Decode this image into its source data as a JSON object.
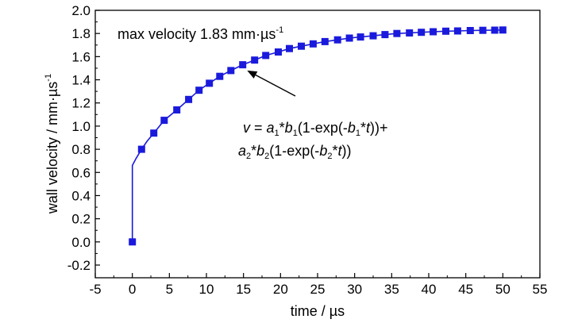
{
  "chart_data": {
    "type": "line",
    "title": "",
    "xlabel": "time / µs",
    "ylabel": {
      "main": "wall velocity / mm·µs",
      "sup": "-1"
    },
    "xlim": [
      -5,
      55
    ],
    "ylim": [
      -0.25,
      2.0
    ],
    "x_ticks": [
      -5,
      0,
      5,
      10,
      15,
      20,
      25,
      30,
      35,
      40,
      45,
      50,
      55
    ],
    "x_tick_labels": [
      "-5",
      "0",
      "5",
      "10",
      "15",
      "20",
      "25",
      "30",
      "35",
      "40",
      "45",
      "50",
      "55"
    ],
    "y_ticks": [
      -0.2,
      0.0,
      0.2,
      0.4,
      0.6,
      0.8,
      1.0,
      1.2,
      1.4,
      1.6,
      1.8,
      2.0
    ],
    "y_tick_labels": [
      "-0.2",
      "0.0",
      "0.2",
      "0.4",
      "0.6",
      "0.8",
      "1.0",
      "1.2",
      "1.4",
      "1.6",
      "1.8",
      "2.0"
    ],
    "grid": false,
    "series": [
      {
        "color": "#1a1adc",
        "marker": "square",
        "x": [
          0,
          1.25,
          2.9,
          4.3,
          6.0,
          7.6,
          9.0,
          10.4,
          11.8,
          13.3,
          14.9,
          16.5,
          18.0,
          19.7,
          21.2,
          22.8,
          24.4,
          26.0,
          27.7,
          29.3,
          30.8,
          32.5,
          34.1,
          35.7,
          37.4,
          39.0,
          40.6,
          42.3,
          43.9,
          45.6,
          47.3,
          48.9,
          50.0
        ],
        "y": [
          0.0,
          0.8,
          0.94,
          1.05,
          1.14,
          1.23,
          1.31,
          1.37,
          1.43,
          1.48,
          1.53,
          1.57,
          1.61,
          1.64,
          1.67,
          1.69,
          1.71,
          1.73,
          1.745,
          1.76,
          1.77,
          1.78,
          1.79,
          1.8,
          1.805,
          1.81,
          1.815,
          1.82,
          1.822,
          1.825,
          1.827,
          1.829,
          1.83
        ]
      }
    ],
    "fit_curve": {
      "x": [
        0,
        0,
        0.5,
        1.25,
        2.0,
        2.9,
        4.3,
        6.0,
        7.6,
        9.0,
        10.4,
        11.8,
        13.3,
        14.9,
        16.5,
        18.0,
        19.7,
        21.2,
        22.8,
        24.4,
        26.0,
        27.7,
        29.3,
        30.8,
        32.5,
        34.1,
        35.7,
        37.4,
        39.0,
        40.6,
        42.3,
        43.9,
        45.6,
        47.3,
        48.9,
        50.0
      ],
      "y": [
        0.0,
        0.66,
        0.72,
        0.8,
        0.87,
        0.94,
        1.05,
        1.14,
        1.23,
        1.31,
        1.37,
        1.43,
        1.48,
        1.53,
        1.57,
        1.61,
        1.64,
        1.67,
        1.69,
        1.71,
        1.73,
        1.745,
        1.76,
        1.77,
        1.78,
        1.79,
        1.8,
        1.805,
        1.81,
        1.815,
        1.82,
        1.822,
        1.825,
        1.827,
        1.829,
        1.83
      ]
    },
    "annotations": {
      "max_label": {
        "text": "max velocity 1.83  mm·µs",
        "sup": "-1"
      },
      "equation_line1": {
        "v": "v",
        "eq": " = ",
        "a": "a",
        "sub1": "1",
        "star1": "*",
        "b": "b",
        "mid": "(1-exp(-",
        "star2": "*",
        "t": "t",
        "tail": "))+"
      },
      "equation_line2": {
        "a": "a",
        "sub2": "2",
        "star1": "*",
        "b": "b",
        "mid": "(1-exp(-",
        "star2": "*",
        "t": "t",
        "tail": "))"
      },
      "arrow_target": {
        "x": 15.5,
        "y": 1.48
      },
      "arrow_tail": {
        "x": 22.0,
        "y": 1.26
      }
    }
  }
}
